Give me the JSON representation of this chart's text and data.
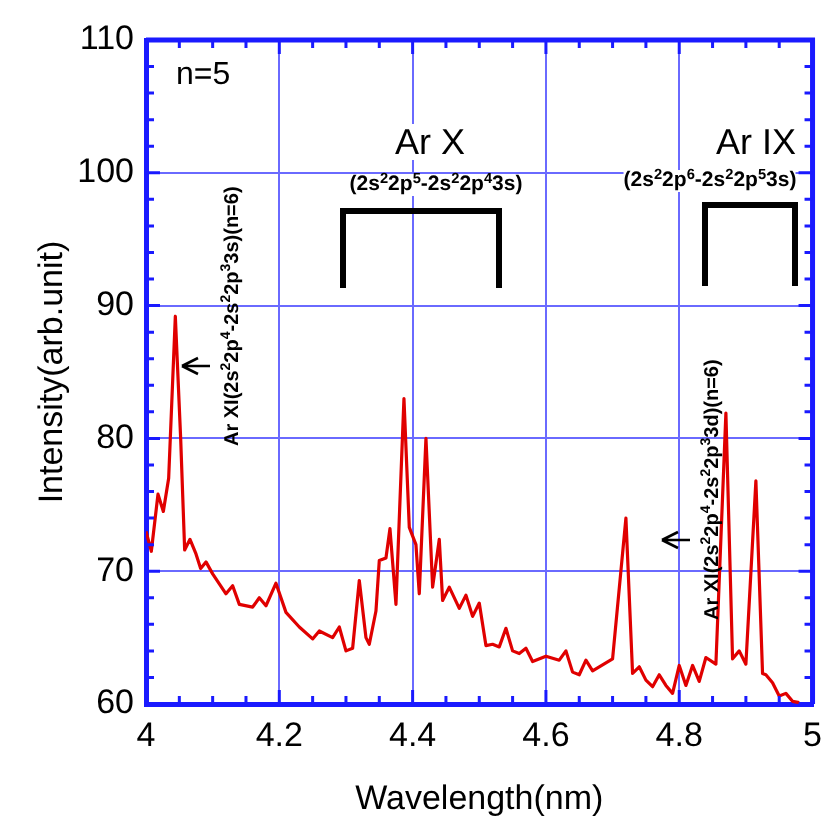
{
  "chart_data": {
    "type": "line",
    "xlabel": "Wavelength(nm)",
    "ylabel": "Intensity(arb.unit)",
    "xlim": [
      4,
      5
    ],
    "xticks": [
      4,
      4.2,
      4.4,
      4.6,
      4.8,
      5
    ],
    "ylim": [
      60,
      110
    ],
    "yticks": [
      60,
      70,
      80,
      90,
      100,
      110
    ],
    "grid": true,
    "marker": "none",
    "line_style": "solid",
    "annotations": [
      "n=5",
      "Ar X",
      "(2s$^{2}$2p$^{5}$-2s$^{2}$2p$^{4}$3s)",
      "Ar IX",
      "(2s$^{2}$2p$^{6}$-2s$^{2}$2p$^{5}$3s)",
      "Ar XI(2s$^{2}$2p$^{4}$-2s$^{2}$2p$^{3}$3s)(n=6)",
      "Ar XI(2s$^{2}$2p$^{4}$-2s$^{2}$2p$^{3}$3d)(n=6)"
    ],
    "series": [
      {
        "color": "#e00000",
        "x": [
          4.0,
          4.008,
          4.018,
          4.026,
          4.034,
          4.044,
          4.052,
          4.058,
          4.066,
          4.075,
          4.082,
          4.09,
          4.1,
          4.12,
          4.13,
          4.14,
          4.16,
          4.17,
          4.18,
          4.195,
          4.21,
          4.23,
          4.25,
          4.26,
          4.28,
          4.29,
          4.3,
          4.31,
          4.32,
          4.33,
          4.335,
          4.345,
          4.35,
          4.36,
          4.366,
          4.375,
          4.387,
          4.395,
          4.405,
          4.41,
          4.42,
          4.43,
          4.44,
          4.445,
          4.455,
          4.47,
          4.48,
          4.49,
          4.5,
          4.51,
          4.52,
          4.53,
          4.54,
          4.55,
          4.56,
          4.57,
          4.58,
          4.6,
          4.62,
          4.63,
          4.64,
          4.65,
          4.66,
          4.67,
          4.68,
          4.7,
          4.72,
          4.73,
          4.74,
          4.75,
          4.76,
          4.77,
          4.78,
          4.79,
          4.8,
          4.81,
          4.82,
          4.83,
          4.84,
          4.855,
          4.87,
          4.88,
          4.89,
          4.9,
          4.915,
          4.925,
          4.93,
          4.94,
          4.95,
          4.96,
          4.97,
          4.98
        ],
        "values": [
          73,
          71.5,
          75.8,
          74.5,
          77,
          89.2,
          80,
          71.6,
          72.4,
          71.3,
          70.2,
          70.7,
          69.8,
          68.3,
          68.9,
          67.5,
          67.3,
          68,
          67.4,
          69.1,
          66.9,
          65.8,
          64.9,
          65.5,
          65,
          65.8,
          64,
          64.2,
          69.3,
          65,
          64.5,
          67,
          70.8,
          71,
          73.2,
          67.5,
          83,
          73.3,
          72,
          68.3,
          80,
          68.8,
          72.4,
          67.8,
          68.8,
          67.2,
          68.2,
          66.6,
          67.6,
          64.4,
          64.5,
          64.3,
          65.7,
          64,
          63.8,
          64.2,
          63.2,
          63.6,
          63.3,
          64,
          62.4,
          62.2,
          63.3,
          62.5,
          62.8,
          63.4,
          74,
          62.3,
          62.8,
          61.8,
          61.3,
          62.2,
          61.4,
          60.8,
          62.9,
          61.4,
          62.9,
          61.7,
          63.5,
          63,
          81.9,
          63.4,
          64,
          63,
          76.8,
          62.3,
          62.2,
          61.6,
          60.6,
          60.8,
          60.2,
          60.1
        ]
      }
    ]
  }
}
